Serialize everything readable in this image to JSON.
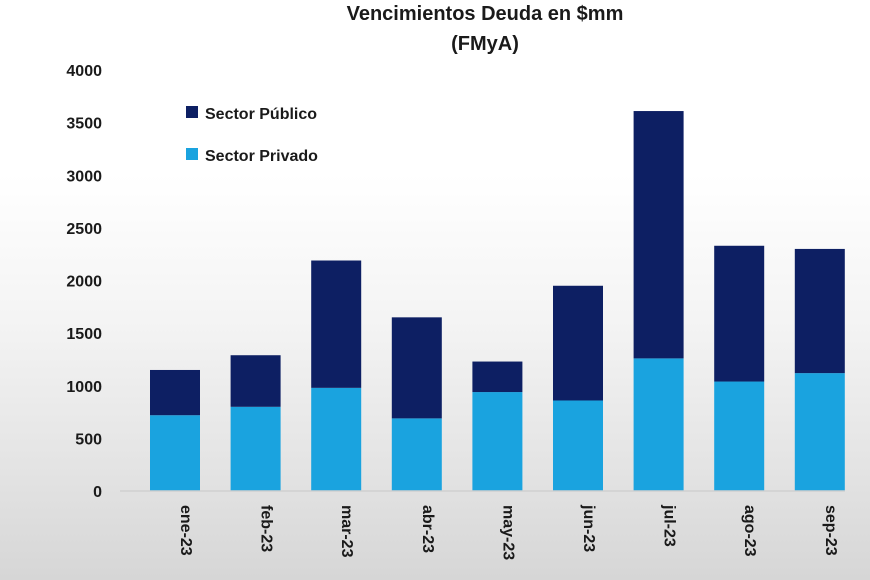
{
  "chart_data": {
    "type": "bar",
    "stacked": true,
    "title": "Vencimientos Deuda en $mm",
    "subtitle": "(FMyA)",
    "categories": [
      "ene-23",
      "feb-23",
      "mar-23",
      "abr-23",
      "may-23",
      "jun-23",
      "jul-23",
      "ago-23",
      "sep-23"
    ],
    "series": [
      {
        "name": "Sector Privado",
        "color": "#1aa3df",
        "values": [
          720,
          800,
          980,
          690,
          940,
          860,
          1260,
          1040,
          1120
        ]
      },
      {
        "name": "Sector Público",
        "color": "#0d1f63",
        "values": [
          430,
          490,
          1210,
          960,
          290,
          1090,
          2350,
          1290,
          1180
        ]
      }
    ],
    "ylim": [
      0,
      4000
    ],
    "yticks": [
      0,
      500,
      1000,
      1500,
      2000,
      2500,
      3000,
      3500,
      4000
    ],
    "yticks_text": [
      "0",
      "500",
      "1000",
      "1500",
      "2000",
      "2500",
      "3000",
      "3500",
      "4000"
    ],
    "legend": {
      "placement": "top-left",
      "items": [
        {
          "label": "Sector Público",
          "color": "#0d1f63"
        },
        {
          "label": "Sector Privado",
          "color": "#1aa3df"
        }
      ]
    },
    "grid": false
  }
}
